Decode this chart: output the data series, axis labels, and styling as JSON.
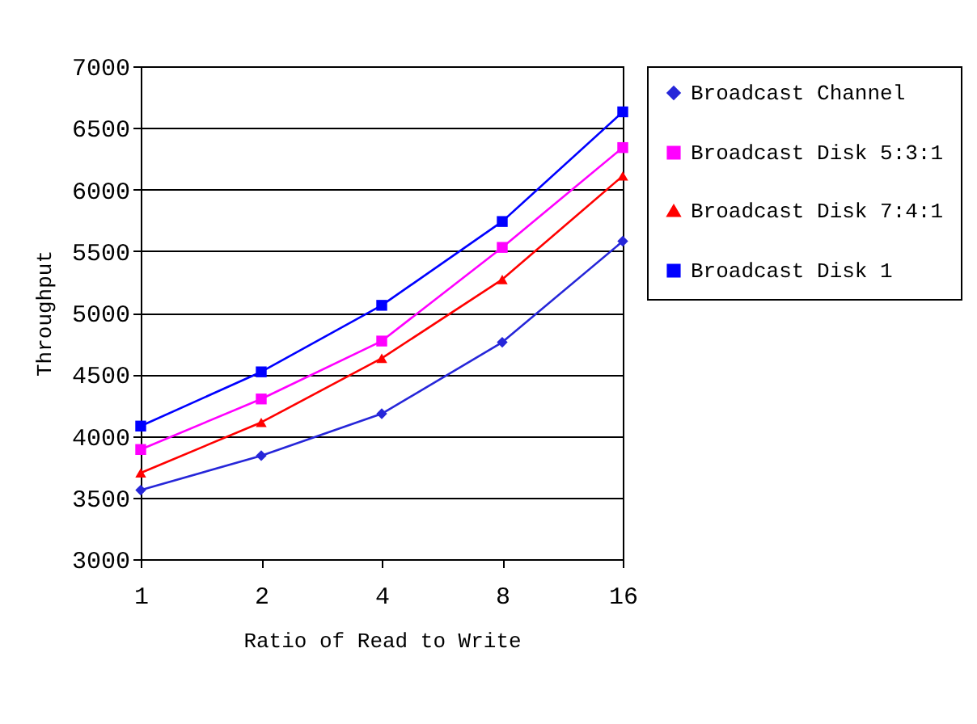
{
  "chart_data": {
    "type": "line",
    "xlabel": "Ratio of Read to Write",
    "ylabel": "Throughput",
    "categories": [
      "1",
      "2",
      "4",
      "8",
      "16"
    ],
    "series": [
      {
        "name": "Broadcast Channel",
        "color": "#2626d9",
        "marker": "diamond",
        "values": [
          3560,
          3840,
          4180,
          4760,
          5580
        ]
      },
      {
        "name": "Broadcast Disk 5:3:1",
        "color": "#ff00ff",
        "marker": "square",
        "values": [
          3890,
          4300,
          4770,
          5530,
          6340
        ]
      },
      {
        "name": "Broadcast Disk 7:4:1",
        "color": "#ff0000",
        "marker": "triangle",
        "values": [
          3700,
          4110,
          4630,
          5270,
          6110
        ]
      },
      {
        "name": "Broadcast Disk 1",
        "color": "#0000ff",
        "marker": "square",
        "values": [
          4080,
          4520,
          5060,
          5740,
          6630
        ]
      }
    ],
    "ylim": [
      3000,
      7000
    ],
    "yticks": [
      3000,
      3500,
      4000,
      4500,
      5000,
      5500,
      6000,
      6500,
      7000
    ],
    "grid": "y",
    "legend": "right"
  }
}
